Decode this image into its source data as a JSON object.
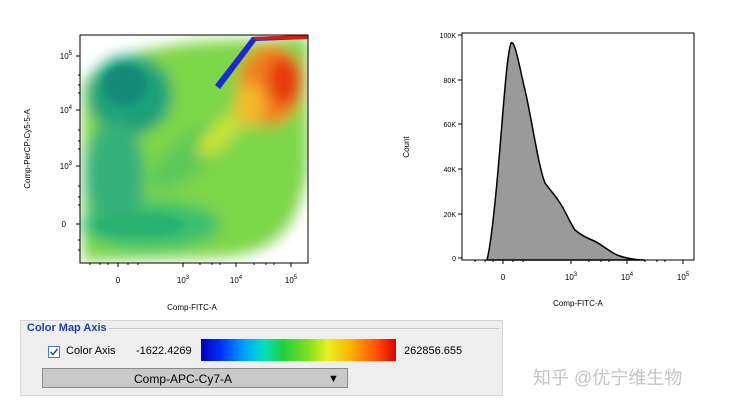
{
  "dot_plot": {
    "x_label": "Comp-FITC-A",
    "y_label": "Comp-PerCP-Cy5-5-A",
    "x_ticks": [
      {
        "base": "0",
        "exp": ""
      },
      {
        "base": "10",
        "exp": "3"
      },
      {
        "base": "10",
        "exp": "4"
      },
      {
        "base": "10",
        "exp": "5"
      }
    ],
    "y_ticks": [
      {
        "base": "10",
        "exp": "5"
      },
      {
        "base": "10",
        "exp": "4"
      },
      {
        "base": "10",
        "exp": "3"
      },
      {
        "base": "0",
        "exp": ""
      }
    ]
  },
  "histogram": {
    "x_label": "Comp-FITC-A",
    "y_label": "Count",
    "y_ticks": [
      "100K",
      "80K",
      "60K",
      "40K",
      "20K",
      "0"
    ],
    "x_ticks": [
      {
        "base": "0",
        "exp": ""
      },
      {
        "base": "10",
        "exp": "3"
      },
      {
        "base": "10",
        "exp": "4"
      },
      {
        "base": "10",
        "exp": "5"
      }
    ],
    "fill_color": "#9a9a9a"
  },
  "color_map": {
    "section_title": "Color Map Axis",
    "checkbox_label": "Color Axis",
    "checked": true,
    "min_value": "-1622.4269",
    "max_value": "262856.655",
    "parameter": "Comp-APC-Cy7-A"
  },
  "watermark": "知乎 @优宁维生物"
}
